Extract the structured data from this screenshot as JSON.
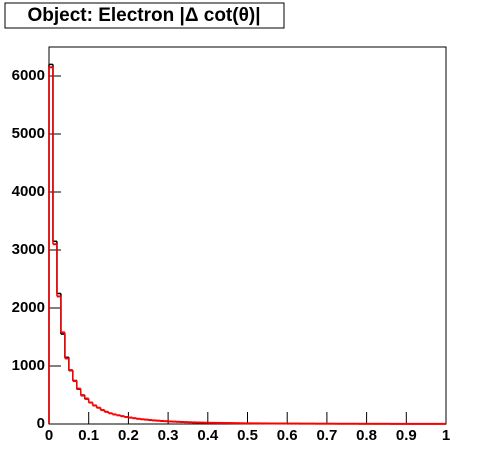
{
  "chart_data": {
    "type": "histogram",
    "title": "Object: Electron |Δ cot(θ)|",
    "bins": [
      0,
      0.01,
      0.02,
      0.03,
      0.04,
      0.05,
      0.06,
      0.07,
      0.08,
      0.09,
      0.1,
      0.11,
      0.12,
      0.13,
      0.14,
      0.15,
      0.16,
      0.17,
      0.18,
      0.19,
      0.2,
      0.21,
      0.22,
      0.23,
      0.24,
      0.25,
      0.26,
      0.27,
      0.28,
      0.29,
      0.3,
      0.31,
      0.32,
      0.33,
      0.34,
      0.35,
      0.36,
      0.37,
      0.38,
      0.39,
      0.4,
      0.41,
      0.42,
      0.43,
      0.44,
      0.45,
      0.46,
      0.47,
      0.48,
      0.49,
      0.5,
      0.51,
      0.52,
      0.53,
      0.54,
      0.55,
      0.56,
      0.57,
      0.58,
      0.59,
      0.6,
      0.61,
      0.62,
      0.63,
      0.64,
      0.65,
      0.66,
      0.67,
      0.68,
      0.69,
      0.7,
      0.71,
      0.72,
      0.73,
      0.74,
      0.75,
      0.76,
      0.77,
      0.78,
      0.79,
      0.8,
      0.81,
      0.82,
      0.83,
      0.84,
      0.85,
      0.86,
      0.87,
      0.88,
      0.89,
      0.9,
      0.91,
      0.92,
      0.93,
      0.94,
      0.95,
      0.96,
      0.97,
      0.98,
      0.99,
      1
    ],
    "series": [
      {
        "color": "#000000",
        "values": [
          6200,
          3150,
          2250,
          1550,
          1150,
          920,
          750,
          600,
          500,
          430,
          370,
          320,
          280,
          240,
          210,
          185,
          165,
          150,
          135,
          120,
          110,
          100,
          90,
          82,
          75,
          68,
          62,
          57,
          52,
          48,
          44,
          41,
          38,
          35,
          32,
          30,
          28,
          26,
          24,
          22,
          21,
          20,
          19,
          18,
          17,
          16,
          15,
          14,
          13,
          12,
          12,
          11,
          11,
          10,
          10,
          9,
          9,
          8,
          8,
          8,
          7,
          7,
          7,
          6,
          6,
          6,
          6,
          5,
          5,
          5,
          5,
          5,
          4,
          4,
          4,
          4,
          4,
          4,
          3,
          3,
          3,
          3,
          3,
          3,
          3,
          3,
          2,
          2,
          2,
          2,
          2,
          2,
          2,
          2,
          2,
          2,
          2,
          2,
          2,
          2
        ]
      },
      {
        "color": "#ff0000",
        "values": [
          6150,
          3100,
          2200,
          1580,
          1130,
          930,
          740,
          610,
          490,
          440,
          370,
          320,
          280,
          240,
          210,
          185,
          165,
          150,
          135,
          120,
          110,
          100,
          90,
          82,
          75,
          68,
          62,
          57,
          52,
          48,
          44,
          41,
          38,
          35,
          32,
          30,
          28,
          26,
          24,
          22,
          21,
          20,
          19,
          18,
          17,
          16,
          15,
          14,
          13,
          12,
          12,
          11,
          11,
          10,
          10,
          9,
          9,
          8,
          8,
          8,
          7,
          7,
          7,
          6,
          6,
          6,
          6,
          5,
          5,
          5,
          5,
          5,
          4,
          4,
          4,
          4,
          4,
          4,
          3,
          3,
          3,
          3,
          3,
          3,
          3,
          3,
          2,
          2,
          2,
          2,
          2,
          2,
          2,
          2,
          2,
          2,
          2,
          2,
          2,
          2
        ]
      }
    ],
    "xlim": [
      0,
      1
    ],
    "xticks": [
      0,
      0.1,
      0.2,
      0.3,
      0.4,
      0.5,
      0.6,
      0.7,
      0.8,
      0.9,
      1
    ],
    "ylim": [
      0,
      6500
    ],
    "yticks": [
      0,
      1000,
      2000,
      3000,
      4000,
      5000,
      6000
    ]
  }
}
